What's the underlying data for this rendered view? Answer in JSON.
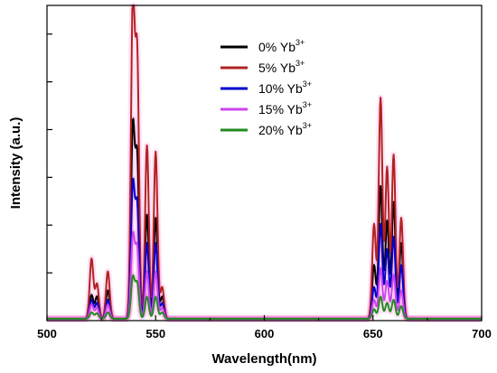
{
  "chart_data": {
    "type": "line",
    "title": "",
    "xlabel": "Wavelength(nm)",
    "ylabel": "Intensity (a.u.)",
    "xlim": [
      500,
      700
    ],
    "ylim": [
      0,
      1.0
    ],
    "x_ticks": [
      "500",
      "550",
      "600",
      "650",
      "700"
    ],
    "y_ticks_labeled": false,
    "grid": false,
    "legend_position": "top-center",
    "series": [
      {
        "name": "0%  Yb",
        "name_sup": "3+",
        "color": "#000000",
        "peaks": [
          {
            "x": 520.5,
            "y": 0.075
          },
          {
            "x": 523,
            "y": 0.07
          },
          {
            "x": 528,
            "y": 0.09
          },
          {
            "x": 539.5,
            "y": 0.6
          },
          {
            "x": 541.5,
            "y": 0.5
          },
          {
            "x": 546,
            "y": 0.33
          },
          {
            "x": 550,
            "y": 0.32
          },
          {
            "x": 553,
            "y": 0.07
          },
          {
            "x": 650.5,
            "y": 0.17
          },
          {
            "x": 653.5,
            "y": 0.42
          },
          {
            "x": 656.5,
            "y": 0.31
          },
          {
            "x": 659.5,
            "y": 0.37
          },
          {
            "x": 663,
            "y": 0.24
          }
        ]
      },
      {
        "name": "5%  Yb",
        "name_sup": "3+",
        "color": "#b22222",
        "peaks": [
          {
            "x": 520.5,
            "y": 0.19
          },
          {
            "x": 523,
            "y": 0.11
          },
          {
            "x": 528,
            "y": 0.15
          },
          {
            "x": 539.5,
            "y": 1.0
          },
          {
            "x": 541.5,
            "y": 0.82
          },
          {
            "x": 546,
            "y": 0.55
          },
          {
            "x": 550,
            "y": 0.53
          },
          {
            "x": 553,
            "y": 0.1
          },
          {
            "x": 650.5,
            "y": 0.3
          },
          {
            "x": 653.5,
            "y": 0.7
          },
          {
            "x": 656.5,
            "y": 0.48
          },
          {
            "x": 659.5,
            "y": 0.52
          },
          {
            "x": 663,
            "y": 0.32
          }
        ]
      },
      {
        "name": "10%  Yb",
        "name_sup": "3+",
        "color": "#0000cd",
        "peaks": [
          {
            "x": 520.5,
            "y": 0.06
          },
          {
            "x": 523,
            "y": 0.05
          },
          {
            "x": 528,
            "y": 0.06
          },
          {
            "x": 539.5,
            "y": 0.42
          },
          {
            "x": 541.5,
            "y": 0.35
          },
          {
            "x": 546,
            "y": 0.24
          },
          {
            "x": 550,
            "y": 0.24
          },
          {
            "x": 553,
            "y": 0.05
          },
          {
            "x": 650.5,
            "y": 0.1
          },
          {
            "x": 653.5,
            "y": 0.3
          },
          {
            "x": 656.5,
            "y": 0.22
          },
          {
            "x": 659.5,
            "y": 0.26
          },
          {
            "x": 663,
            "y": 0.17
          }
        ]
      },
      {
        "name": "15%  Yb",
        "name_sup": "3+",
        "color": "#cc44ee",
        "peaks": [
          {
            "x": 520.5,
            "y": 0.045
          },
          {
            "x": 523,
            "y": 0.035
          },
          {
            "x": 528,
            "y": 0.045
          },
          {
            "x": 539.5,
            "y": 0.26
          },
          {
            "x": 541.5,
            "y": 0.22
          },
          {
            "x": 546,
            "y": 0.15
          },
          {
            "x": 550,
            "y": 0.15
          },
          {
            "x": 553,
            "y": 0.035
          },
          {
            "x": 650.5,
            "y": 0.06
          },
          {
            "x": 653.5,
            "y": 0.16
          },
          {
            "x": 656.5,
            "y": 0.12
          },
          {
            "x": 659.5,
            "y": 0.14
          },
          {
            "x": 663,
            "y": 0.09
          }
        ]
      },
      {
        "name": "20%  Yb",
        "name_sup": "3+",
        "color": "#228b22",
        "peaks": [
          {
            "x": 520.5,
            "y": 0.02
          },
          {
            "x": 523,
            "y": 0.017
          },
          {
            "x": 528,
            "y": 0.02
          },
          {
            "x": 539.5,
            "y": 0.13
          },
          {
            "x": 541.5,
            "y": 0.11
          },
          {
            "x": 546,
            "y": 0.07
          },
          {
            "x": 550,
            "y": 0.07
          },
          {
            "x": 553,
            "y": 0.02
          },
          {
            "x": 650.5,
            "y": 0.03
          },
          {
            "x": 653.5,
            "y": 0.07
          },
          {
            "x": 656.5,
            "y": 0.05
          },
          {
            "x": 659.5,
            "y": 0.06
          },
          {
            "x": 663,
            "y": 0.04
          }
        ]
      }
    ]
  }
}
